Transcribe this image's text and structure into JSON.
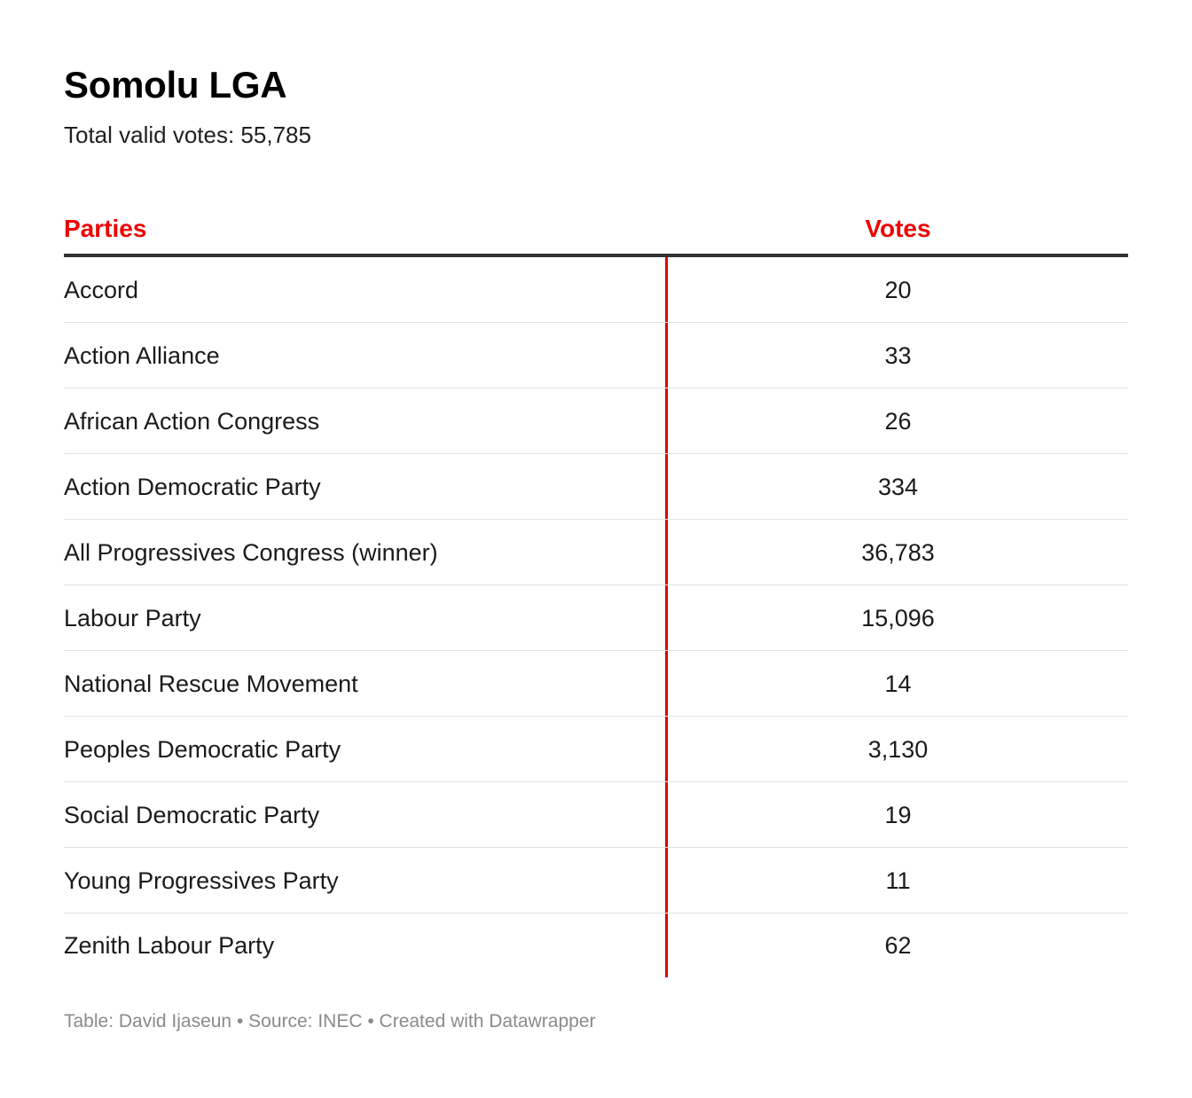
{
  "title": "Somolu LGA",
  "subtitle": "Total valid votes: 55,785",
  "headers": {
    "party": "Parties",
    "votes": "Votes"
  },
  "colors": {
    "header_text": "#ee0000",
    "divider": "#dd0000",
    "title": "#000000",
    "footer": "#8a8a8a"
  },
  "rows": [
    {
      "party": "Accord",
      "votes": "20"
    },
    {
      "party": "Action Alliance",
      "votes": "33"
    },
    {
      "party": "African Action Congress",
      "votes": "26"
    },
    {
      "party": "Action Democratic Party",
      "votes": "334"
    },
    {
      "party": "All Progressives Congress (winner)",
      "votes": "36,783"
    },
    {
      "party": "Labour Party",
      "votes": "15,096"
    },
    {
      "party": "National Rescue Movement",
      "votes": "14"
    },
    {
      "party": "Peoples Democratic Party",
      "votes": "3,130"
    },
    {
      "party": "Social Democratic Party",
      "votes": "19"
    },
    {
      "party": "Young Progressives Party",
      "votes": "11"
    },
    {
      "party": "Zenith Labour Party",
      "votes": "62"
    }
  ],
  "footer": "Table: David Ijaseun • Source: INEC • Created with Datawrapper",
  "chart_data": {
    "type": "table",
    "title": "Somolu LGA",
    "subtitle": "Total valid votes: 55,785",
    "columns": [
      "Parties",
      "Votes"
    ],
    "categories": [
      "Accord",
      "Action Alliance",
      "African Action Congress",
      "Action Democratic Party",
      "All Progressives Congress (winner)",
      "Labour Party",
      "National Rescue Movement",
      "Peoples Democratic Party",
      "Social Democratic Party",
      "Young Progressives Party",
      "Zenith Labour Party"
    ],
    "values": [
      20,
      33,
      26,
      334,
      36783,
      15096,
      14,
      3130,
      19,
      11,
      62
    ]
  }
}
